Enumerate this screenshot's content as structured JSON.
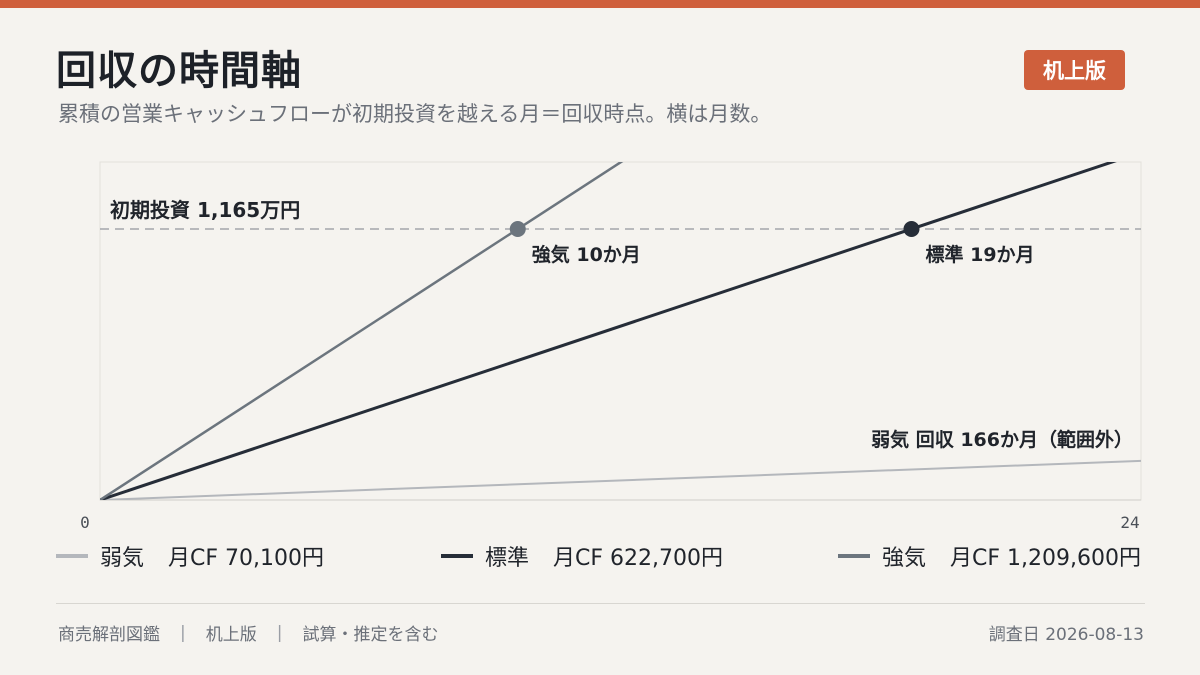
{
  "header": {
    "title": "回収の時間軸",
    "subtitle": "累積の営業キャッシュフローが初期投資を越える月＝回収時点。横は月数。",
    "badge": "机上版"
  },
  "chart_data": {
    "type": "line",
    "title": "回収の時間軸",
    "x_unit": "月",
    "xlim": [
      0,
      24
    ],
    "x_tick_labels": [
      "0",
      "24"
    ],
    "threshold": {
      "label": "初期投資 1,165万円",
      "value": 11650000
    },
    "series": [
      {
        "name": "弱気",
        "monthly_cf_label": "月CF 70,100円",
        "monthly_cf": 70100,
        "color": "#b4b7bc",
        "payback_months": 166,
        "annotation": "弱気 回収 166か月（範囲外）"
      },
      {
        "name": "標準",
        "monthly_cf_label": "月CF 622,700円",
        "monthly_cf": 622700,
        "color": "#262d38",
        "payback_months": 19,
        "annotation": "標準 19か月"
      },
      {
        "name": "強気",
        "monthly_cf_label": "月CF 1,209,600円",
        "monthly_cf": 1209600,
        "color": "#6c757e",
        "payback_months": 10,
        "annotation": "強気 10か月"
      }
    ],
    "grid": false
  },
  "footer": {
    "items": [
      "商売解剖図鑑",
      "机上版",
      "試算・推定を含む"
    ],
    "separator": "|",
    "date": "調査日 2026-08-13"
  }
}
